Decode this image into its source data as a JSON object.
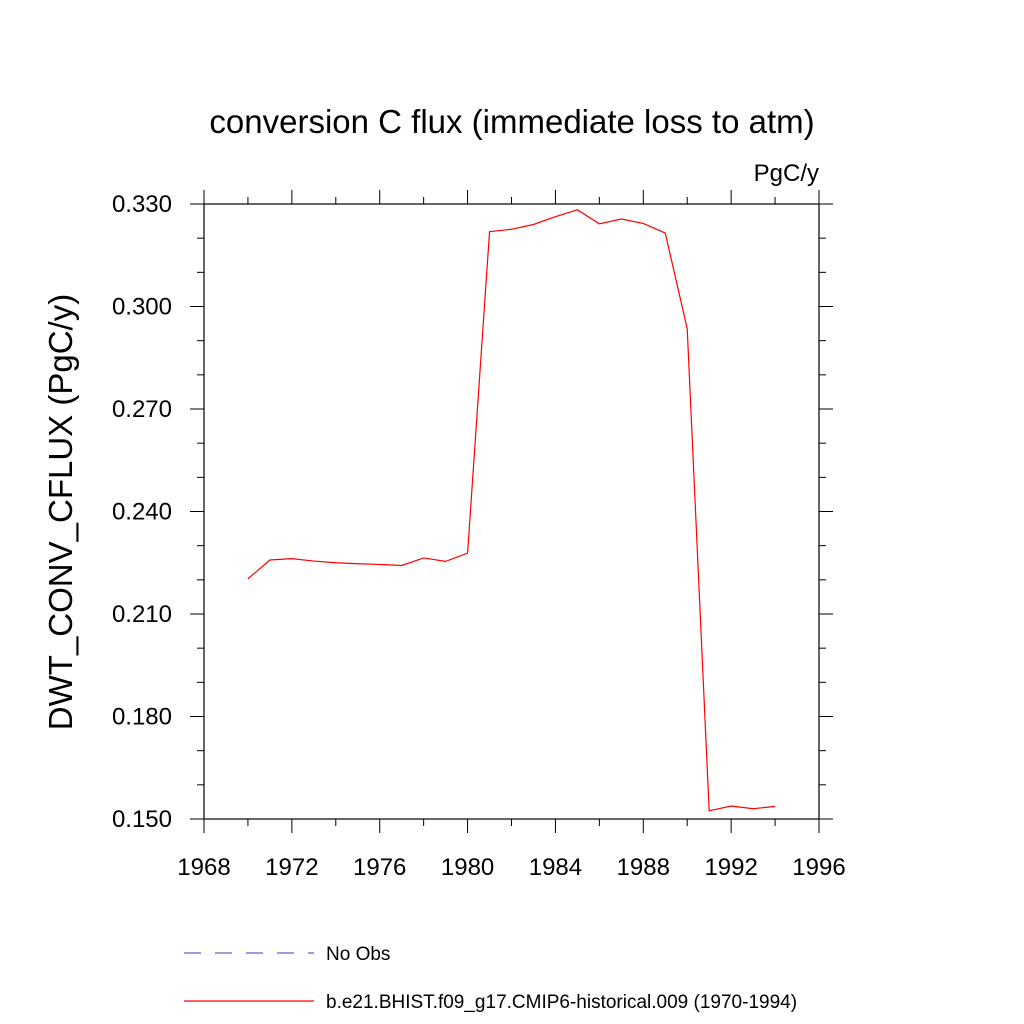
{
  "chart_data": {
    "type": "line",
    "title": "conversion C flux (immediate loss to atm)",
    "units_label": "PgC/y",
    "ylabel": "DWT_CONV_CFLUX  (PgC/y)",
    "xlabel": "",
    "xlim": [
      1968,
      1996
    ],
    "ylim": [
      0.15,
      0.33
    ],
    "x_ticks": [
      "1968",
      "1972",
      "1976",
      "1980",
      "1984",
      "1988",
      "1992",
      "1996"
    ],
    "y_ticks": [
      "0.150",
      "0.180",
      "0.210",
      "0.240",
      "0.270",
      "0.300",
      "0.330"
    ],
    "x": [
      1970,
      1971,
      1972,
      1973,
      1974,
      1975,
      1976,
      1977,
      1978,
      1979,
      1980,
      1981,
      1982,
      1983,
      1984,
      1985,
      1986,
      1987,
      1988,
      1989,
      1990,
      1991,
      1992,
      1993,
      1994
    ],
    "series": [
      {
        "name": "b.e21.BHIST.f09_g17.CMIP6-historical.009 (1970-1994)",
        "color": "#ff0000",
        "values": [
          0.2203,
          0.2258,
          0.2262,
          0.2255,
          0.225,
          0.2247,
          0.2245,
          0.2242,
          0.2264,
          0.2254,
          0.2278,
          0.3219,
          0.3226,
          0.324,
          0.3263,
          0.3283,
          0.3242,
          0.3256,
          0.3243,
          0.3215,
          0.2935,
          0.1524,
          0.1538,
          0.153,
          0.1537
        ]
      }
    ],
    "legend": {
      "placement": "bottom",
      "entries": [
        {
          "label": "No Obs",
          "color": "#6a5acd",
          "dash": "dashed"
        },
        {
          "label": "b.e21.BHIST.f09_g17.CMIP6-historical.009 (1970-1994)",
          "color": "#ff0000",
          "dash": "solid"
        }
      ]
    },
    "grid": false
  }
}
